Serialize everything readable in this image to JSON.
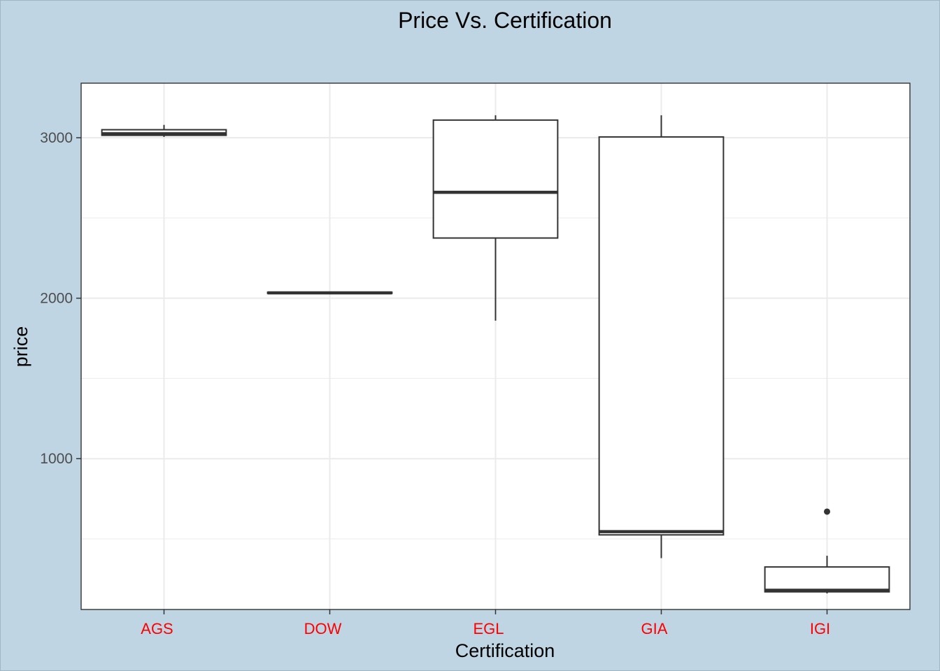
{
  "colors": {
    "outer_background": "#bfd5e4",
    "panel_background": "#ffffff",
    "grid": "#ebebeb",
    "box_line": "#333333",
    "x_tick_labels": "#ff0000",
    "y_tick_labels": "#4d4d4d"
  },
  "chart_data": {
    "type": "boxplot",
    "title": "Price Vs. Certification",
    "xlabel": "Certification",
    "ylabel": "price",
    "ylim": [
      60,
      3340
    ],
    "yticks": [
      1000,
      2000,
      3000
    ],
    "grid": true,
    "legend": "none",
    "categories": [
      "AGS",
      "DOW",
      "EGL",
      "GIA",
      "IGI"
    ],
    "boxes": [
      {
        "category": "AGS",
        "whisker_low": 3005,
        "q1": 3015,
        "median": 3025,
        "q3": 3050,
        "whisker_high": 3080,
        "outliers": []
      },
      {
        "category": "DOW",
        "whisker_low": 2030,
        "q1": 2030,
        "median": 2033,
        "q3": 2037,
        "whisker_high": 2037,
        "outliers": []
      },
      {
        "category": "EGL",
        "whisker_low": 1860,
        "q1": 2375,
        "median": 2660,
        "q3": 3110,
        "whisker_high": 3140,
        "outliers": []
      },
      {
        "category": "GIA",
        "whisker_low": 380,
        "q1": 525,
        "median": 545,
        "q3": 3005,
        "whisker_high": 3140,
        "outliers": []
      },
      {
        "category": "IGI",
        "whisker_low": 160,
        "q1": 170,
        "median": 180,
        "q3": 325,
        "whisker_high": 395,
        "outliers": [
          670
        ]
      }
    ]
  }
}
